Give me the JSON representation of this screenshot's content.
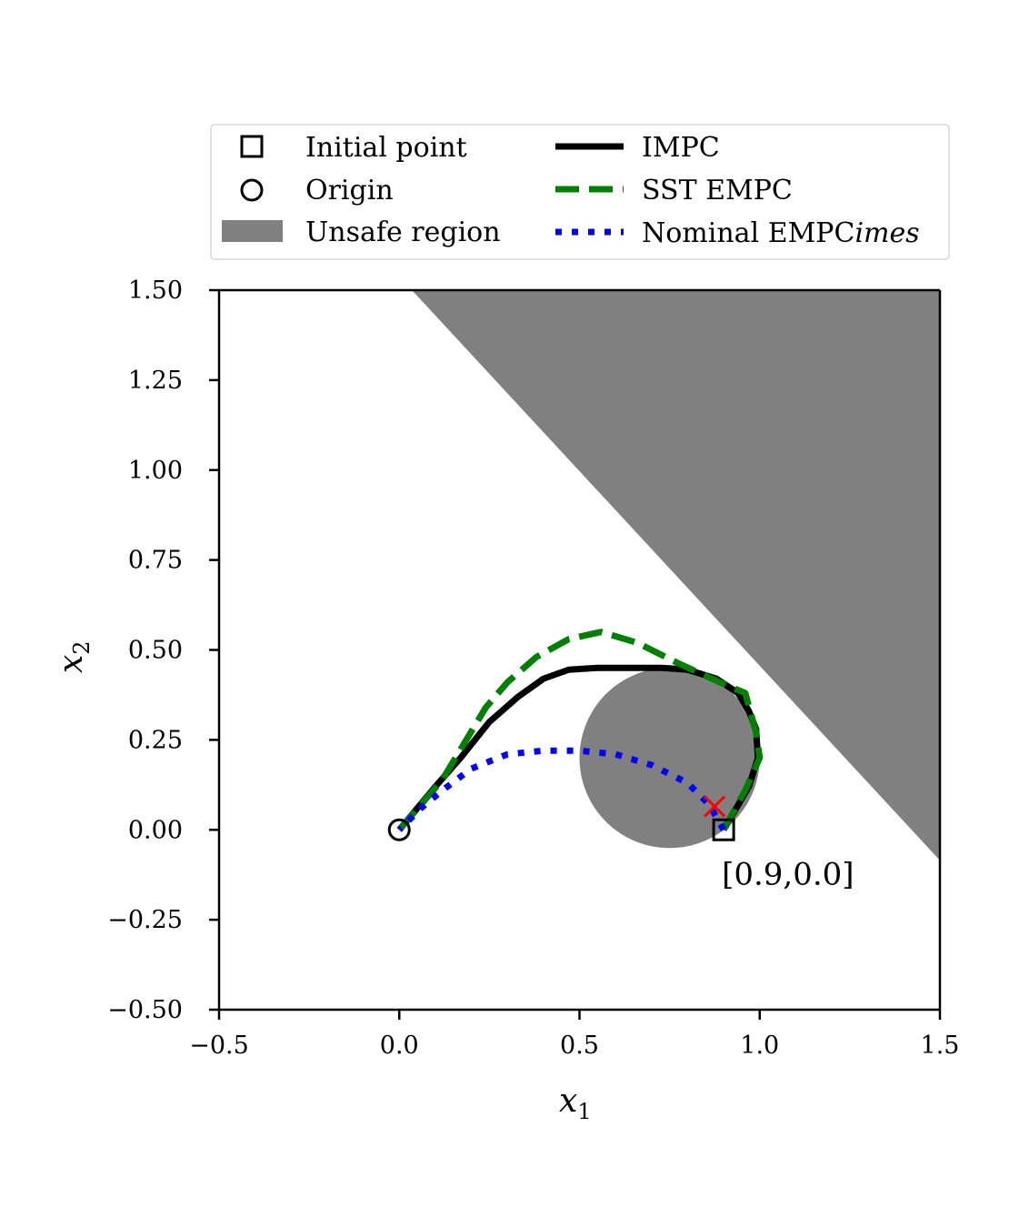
{
  "chart_data": {
    "type": "line",
    "title": "",
    "xlabel": "x",
    "xlabel_sub": "1",
    "ylabel": "x",
    "ylabel_sub": "2",
    "xlim": [
      -0.5,
      1.5
    ],
    "ylim": [
      -0.5,
      1.5
    ],
    "x_ticks": [
      -0.5,
      0.0,
      0.5,
      1.0,
      1.5
    ],
    "x_tick_labels": [
      "−0.5",
      "0.0",
      "0.5",
      "1.0",
      "1.5"
    ],
    "y_ticks": [
      -0.5,
      -0.25,
      0.0,
      0.25,
      0.5,
      0.75,
      1.0,
      1.25,
      1.5
    ],
    "y_tick_labels": [
      "−0.50",
      "−0.25",
      "0.00",
      "0.25",
      "0.50",
      "0.75",
      "1.00",
      "1.25",
      "1.50"
    ],
    "grid": false,
    "legend_position": "top",
    "legend": {
      "initial_point": "Initial point",
      "origin": "Origin",
      "unsafe_region": "Unsafe region",
      "impc": "IMPC",
      "sst_empc": "SST EMPC",
      "nominal_empc_prefix": "Nominal EMPC",
      "nominal_empc_suffix": "imes"
    },
    "unsafe_region": {
      "circle": {
        "center": [
          0.75,
          0.2
        ],
        "radius": 0.25,
        "color": "#808080"
      },
      "half_plane_boundary": [
        [
          0.035,
          1.5
        ],
        [
          1.5,
          -0.085
        ]
      ],
      "color": "#808080"
    },
    "initial_point": [
      0.9,
      0.0
    ],
    "origin": [
      0.0,
      0.0
    ],
    "annotation": "[0.9,0.0]",
    "failure_marker": {
      "point": [
        0.875,
        0.065
      ],
      "color": "#ff0000"
    },
    "series": [
      {
        "name": "IMPC",
        "color": "#000000",
        "style": "solid",
        "x": [
          0.9,
          0.97,
          0.995,
          0.99,
          0.97,
          0.94,
          0.88,
          0.8,
          0.73,
          0.65,
          0.55,
          0.47,
          0.4,
          0.33,
          0.25,
          0.17,
          0.1,
          0.05,
          0.0
        ],
        "y": [
          0.0,
          0.12,
          0.2,
          0.28,
          0.33,
          0.38,
          0.42,
          0.445,
          0.45,
          0.45,
          0.45,
          0.445,
          0.42,
          0.37,
          0.3,
          0.2,
          0.12,
          0.06,
          0.0
        ]
      },
      {
        "name": "SST EMPC",
        "color": "#008000",
        "style": "dashed",
        "x": [
          0.9,
          0.96,
          1.0,
          0.99,
          0.96,
          0.89,
          0.78,
          0.66,
          0.56,
          0.47,
          0.38,
          0.3,
          0.24,
          0.18,
          0.12,
          0.06,
          0.0
        ],
        "y": [
          0.0,
          0.11,
          0.2,
          0.27,
          0.38,
          0.41,
          0.46,
          0.52,
          0.55,
          0.53,
          0.48,
          0.41,
          0.34,
          0.24,
          0.14,
          0.07,
          0.0
        ]
      },
      {
        "name": "Nominal EMPC",
        "color": "#0000ff",
        "style": "dotted",
        "x": [
          0.9,
          0.86,
          0.8,
          0.7,
          0.6,
          0.5,
          0.4,
          0.3,
          0.2,
          0.12,
          0.06,
          0.0
        ],
        "y": [
          0.0,
          0.07,
          0.13,
          0.18,
          0.21,
          0.22,
          0.22,
          0.21,
          0.17,
          0.11,
          0.06,
          0.0
        ]
      }
    ]
  }
}
